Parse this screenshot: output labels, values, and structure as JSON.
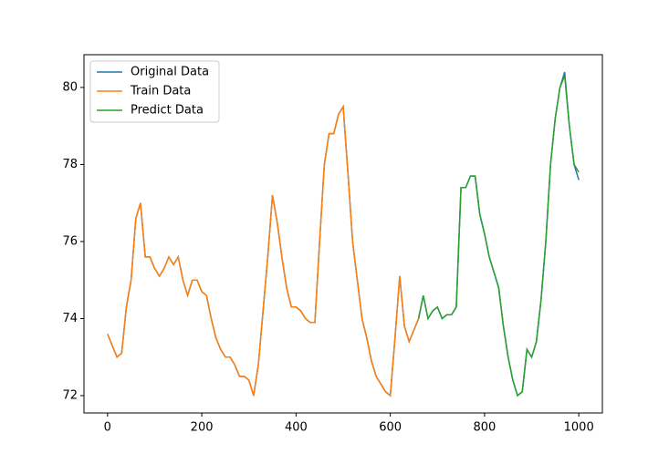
{
  "chart_data": {
    "type": "line",
    "x": [
      0,
      10,
      20,
      30,
      40,
      50,
      60,
      70,
      80,
      90,
      100,
      110,
      120,
      130,
      140,
      150,
      160,
      170,
      180,
      190,
      200,
      210,
      220,
      230,
      240,
      250,
      260,
      270,
      280,
      290,
      300,
      310,
      320,
      330,
      340,
      350,
      360,
      370,
      380,
      390,
      400,
      410,
      420,
      430,
      440,
      450,
      460,
      470,
      480,
      490,
      500,
      510,
      520,
      530,
      540,
      550,
      560,
      570,
      580,
      590,
      600,
      610,
      620,
      630,
      640,
      650,
      660,
      670,
      680,
      690,
      700,
      710,
      720,
      730,
      740,
      750,
      760,
      770,
      780,
      790,
      800,
      810,
      820,
      830,
      840,
      850,
      860,
      870,
      880,
      890,
      900,
      910,
      920,
      930,
      940,
      950,
      960,
      970,
      980,
      990,
      1000
    ],
    "series": [
      {
        "name": "Original Data",
        "color": "#1f77b4",
        "values": [
          73.6,
          73.3,
          73.0,
          73.1,
          74.3,
          75.0,
          76.6,
          77.0,
          75.6,
          75.6,
          75.3,
          75.1,
          75.3,
          75.6,
          75.4,
          75.6,
          75.0,
          74.6,
          75.0,
          75.0,
          74.7,
          74.6,
          74.0,
          73.5,
          73.2,
          73.0,
          73.0,
          72.8,
          72.5,
          72.5,
          72.4,
          72.0,
          72.8,
          74.2,
          75.6,
          77.2,
          76.5,
          75.6,
          74.8,
          74.3,
          74.3,
          74.2,
          74.0,
          73.9,
          73.9,
          76.0,
          78.0,
          78.8,
          78.8,
          79.3,
          79.5,
          77.8,
          76.0,
          75.0,
          74.0,
          73.5,
          72.9,
          72.5,
          72.3,
          72.1,
          72.0,
          73.5,
          75.1,
          73.8,
          73.4,
          73.7,
          74.0,
          74.6,
          74.0,
          74.2,
          74.3,
          74.0,
          74.1,
          74.1,
          74.3,
          77.4,
          77.4,
          77.7,
          77.7,
          76.7,
          76.2,
          75.6,
          75.2,
          74.8,
          73.8,
          73.0,
          72.4,
          72.0,
          72.1,
          73.2,
          73.0,
          73.4,
          74.5,
          76.0,
          78.0,
          79.2,
          80.0,
          80.4,
          79.0,
          78.0,
          77.6
        ]
      },
      {
        "name": "Train Data",
        "color": "#ff7f0e",
        "values": [
          73.6,
          73.3,
          73.0,
          73.1,
          74.3,
          75.0,
          76.6,
          77.0,
          75.6,
          75.6,
          75.3,
          75.1,
          75.3,
          75.6,
          75.4,
          75.6,
          75.0,
          74.6,
          75.0,
          75.0,
          74.7,
          74.6,
          74.0,
          73.5,
          73.2,
          73.0,
          73.0,
          72.8,
          72.5,
          72.5,
          72.4,
          72.0,
          72.8,
          74.2,
          75.6,
          77.2,
          76.5,
          75.6,
          74.8,
          74.3,
          74.3,
          74.2,
          74.0,
          73.9,
          73.9,
          76.0,
          78.0,
          78.8,
          78.8,
          79.3,
          79.5,
          77.8,
          76.0,
          75.0,
          74.0,
          73.5,
          72.9,
          72.5,
          72.3,
          72.1,
          72.0,
          73.5,
          75.1,
          73.8,
          73.4,
          73.7,
          74.0,
          null,
          null,
          null,
          null,
          null,
          null,
          null,
          null,
          null,
          null,
          null,
          null,
          null,
          null,
          null,
          null,
          null,
          null,
          null,
          null,
          null,
          null,
          null,
          null,
          null,
          null,
          null,
          null,
          null,
          null,
          null,
          null,
          null,
          null
        ]
      },
      {
        "name": "Predict Data",
        "color": "#2ca02c",
        "values": [
          null,
          null,
          null,
          null,
          null,
          null,
          null,
          null,
          null,
          null,
          null,
          null,
          null,
          null,
          null,
          null,
          null,
          null,
          null,
          null,
          null,
          null,
          null,
          null,
          null,
          null,
          null,
          null,
          null,
          null,
          null,
          null,
          null,
          null,
          null,
          null,
          null,
          null,
          null,
          null,
          null,
          null,
          null,
          null,
          null,
          null,
          null,
          null,
          null,
          null,
          null,
          null,
          null,
          null,
          null,
          null,
          null,
          null,
          null,
          null,
          null,
          null,
          null,
          null,
          null,
          null,
          74.0,
          74.6,
          74.0,
          74.2,
          74.3,
          74.0,
          74.1,
          74.1,
          74.3,
          77.4,
          77.4,
          77.7,
          77.7,
          76.7,
          76.2,
          75.6,
          75.2,
          74.8,
          73.8,
          73.0,
          72.4,
          72.0,
          72.1,
          73.2,
          73.0,
          73.4,
          74.5,
          76.0,
          78.0,
          79.2,
          80.0,
          80.3,
          79.0,
          78.0,
          77.8
        ]
      }
    ],
    "xlim": [
      -50,
      1050
    ],
    "ylim": [
      71.55,
      80.85
    ],
    "xticks": [
      0,
      200,
      400,
      600,
      800,
      1000
    ],
    "yticks": [
      72,
      74,
      76,
      78,
      80
    ],
    "legend": "upper left"
  }
}
